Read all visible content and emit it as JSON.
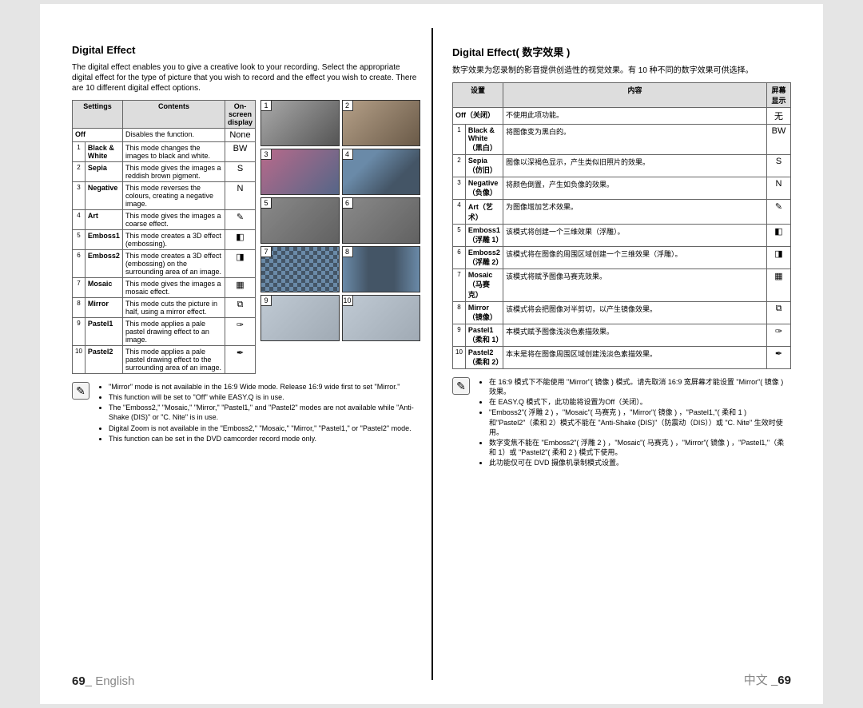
{
  "left": {
    "title": "Digital Effect",
    "intro": "The digital effect enables you to give a creative look to your recording. Select the appropriate digital effect for the type of picture that you wish to record and the effect you wish to create. There are 10 different digital effect options.",
    "headers": {
      "settings": "Settings",
      "contents": "Contents",
      "osd": "On-screen display"
    },
    "rows": [
      {
        "idx": "",
        "setting": "Off",
        "desc": "Disables the function.",
        "osd": "None"
      },
      {
        "idx": "1",
        "setting": "Black & White",
        "desc": "This mode changes the images to black and white.",
        "osd": "BW"
      },
      {
        "idx": "2",
        "setting": "Sepia",
        "desc": "This mode gives the images a reddish brown pigment.",
        "osd": "S"
      },
      {
        "idx": "3",
        "setting": "Negative",
        "desc": "This mode reverses the colours, creating a negative image.",
        "osd": "N"
      },
      {
        "idx": "4",
        "setting": "Art",
        "desc": "This mode gives the images a coarse effect.",
        "osd": "✎"
      },
      {
        "idx": "5",
        "setting": "Emboss1",
        "desc": "This mode creates a 3D effect (embossing).",
        "osd": "◧"
      },
      {
        "idx": "6",
        "setting": "Emboss2",
        "desc": "This mode creates a 3D effect (embossing) on the surrounding area of an image.",
        "osd": "◨"
      },
      {
        "idx": "7",
        "setting": "Mosaic",
        "desc": "This mode gives the images a mosaic effect.",
        "osd": "▦"
      },
      {
        "idx": "8",
        "setting": "Mirror",
        "desc": "This mode cuts the picture in half, using a mirror effect.",
        "osd": "⧉"
      },
      {
        "idx": "9",
        "setting": "Pastel1",
        "desc": "This mode applies a pale pastel drawing effect to an image.",
        "osd": "✑"
      },
      {
        "idx": "10",
        "setting": "Pastel2",
        "desc": "This mode applies a pale pastel drawing effect to the surrounding area of an image.",
        "osd": "✒"
      }
    ],
    "notes": [
      "\"Mirror\" mode is not available in the 16:9 Wide mode. Release 16:9 wide first to set \"Mirror.\"",
      "This function will be set to \"Off\" while EASY.Q is in use.",
      "The \"Emboss2,\" \"Mosaic,\" \"Mirror,\" \"Pastel1,\" and \"Pastel2\" modes are not available while \"Anti-Shake (DIS)\" or \"C. Nite\" is in use.",
      "Digital Zoom is not available in the \"Emboss2,\" \"Mosaic,\" \"Mirror,\" \"Pastel1,\" or \"Pastel2\" mode.",
      "This function can be set in the DVD camcorder record mode only."
    ],
    "footer": {
      "page": "69_",
      "lang": "English"
    }
  },
  "right": {
    "title": "Digital Effect( 数字效果 )",
    "intro": "数字效果为您录制的影音提供创造性的视觉效果。有 10 种不同的数字效果可供选择。",
    "headers": {
      "settings": "设置",
      "contents": "内容",
      "osd": "屏幕显示"
    },
    "rows": [
      {
        "idx": "",
        "setting": "Off（关闭）",
        "desc": "不使用此项功能。",
        "osd": "无"
      },
      {
        "idx": "1",
        "setting": "Black & White（黑白）",
        "desc": "将图像变为黑白的。",
        "osd": "BW"
      },
      {
        "idx": "2",
        "setting": "Sepia（仿旧）",
        "desc": "图像以深褐色显示，产生类似旧照片的效果。",
        "osd": "S"
      },
      {
        "idx": "3",
        "setting": "Negative（负像）",
        "desc": "将颜色倒置，产生如负像的效果。",
        "osd": "N"
      },
      {
        "idx": "4",
        "setting": "Art（艺术）",
        "desc": "为图像增加艺术效果。",
        "osd": "✎"
      },
      {
        "idx": "5",
        "setting": "Emboss1（浮雕 1）",
        "desc": "该模式将创建一个三维效果（浮雕）。",
        "osd": "◧"
      },
      {
        "idx": "6",
        "setting": "Emboss2（浮雕 2）",
        "desc": "该模式将在图像的周围区域创建一个三维效果（浮雕）。",
        "osd": "◨"
      },
      {
        "idx": "7",
        "setting": "Mosaic（马赛克）",
        "desc": "该模式将赋予图像马赛克效果。",
        "osd": "▦"
      },
      {
        "idx": "8",
        "setting": "Mirror（镜像）",
        "desc": "该模式将会把图像对半剪切，以产生镜像效果。",
        "osd": "⧉"
      },
      {
        "idx": "9",
        "setting": "Pastel1（柔和 1）",
        "desc": "本模式赋予图像浅淡色素描效果。",
        "osd": "✑"
      },
      {
        "idx": "10",
        "setting": "Pastel2（柔和 2）",
        "desc": "本末是将在图像周围区域创建浅淡色素描效果。",
        "osd": "✒"
      }
    ],
    "notes": [
      "在 16:9 模式下不能使用 \"Mirror\"( 镜像 ) 模式。请先取消 16:9 宽屏幕才能设置 \"Mirror\"( 镜像 ) 效果。",
      "在 EASY.Q 模式下，此功能将设置为Off（关闭）。",
      "\"Emboss2\"( 浮雕 2 ) ，\"Mosaic\"( 马赛克 ) ，\"Mirror\"( 镜像 ) ，\"Pastel1,\"( 柔和 1 ) 和\"Pastel2\"（柔和 2）模式不能在 \"Anti-Shake (DIS)\"（防震动（DIS））或 \"C. Nite\" 生效时使用。",
      "数字变焦不能在 \"Emboss2\"( 浮雕 2 ) ，\"Mosaic\"( 马赛克 ) ，\"Mirror\"( 镜像 ) ，\"Pastel1,\"（柔和 1）或 \"Pastel2\"( 柔和 2 ) 模式下使用。",
      "此功能仅可在 DVD 摄像机录制模式设置。"
    ],
    "footer": {
      "lang": "中文",
      "page": "_69"
    }
  },
  "thumbs": [
    {
      "n": "1",
      "cls": "bw"
    },
    {
      "n": "2",
      "cls": "sepia"
    },
    {
      "n": "3",
      "cls": "neg"
    },
    {
      "n": "4",
      "cls": ""
    },
    {
      "n": "5",
      "cls": "emb"
    },
    {
      "n": "6",
      "cls": "emb"
    },
    {
      "n": "7",
      "cls": "mosaic"
    },
    {
      "n": "8",
      "cls": "mirror"
    },
    {
      "n": "9",
      "cls": "pastel"
    },
    {
      "n": "10",
      "cls": "pastel"
    }
  ]
}
